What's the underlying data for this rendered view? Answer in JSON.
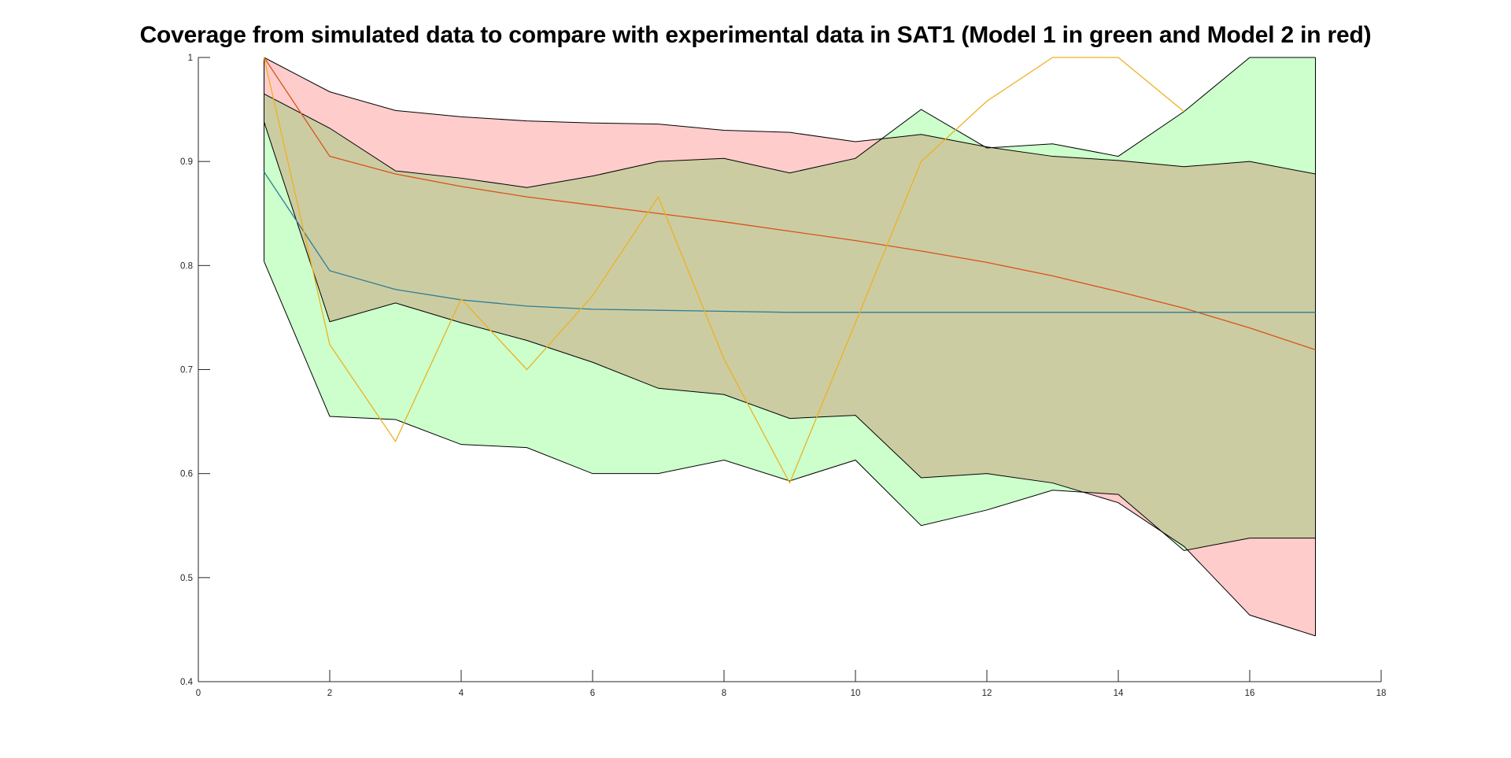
{
  "chart_data": {
    "type": "area",
    "title": "Coverage from simulated data to compare with experimental data in SAT1 (Model 1 in green and Model 2 in red)",
    "xlabel": "",
    "ylabel": "",
    "xlim": [
      0,
      18
    ],
    "ylim": [
      0.4,
      1
    ],
    "x_ticks": [
      "0",
      "2",
      "4",
      "6",
      "8",
      "10",
      "12",
      "14",
      "16",
      "18"
    ],
    "y_ticks": [
      "0.4",
      "0.5",
      "0.6",
      "0.7",
      "0.8",
      "0.9",
      "1"
    ],
    "grid": false,
    "legend": "none",
    "x": [
      1,
      2,
      3,
      4,
      5,
      6,
      7,
      8,
      9,
      10,
      11,
      12,
      13,
      14,
      15,
      16,
      17
    ],
    "bands": [
      {
        "model": "Model 1",
        "color": "#ccffcc",
        "upper": [
          0.965,
          0.932,
          0.891,
          0.884,
          0.875,
          0.886,
          0.9,
          0.903,
          0.889,
          0.903,
          0.95,
          0.913,
          0.917,
          0.905,
          0.948,
          1.0,
          1.0
        ],
        "lower": [
          0.804,
          0.655,
          0.652,
          0.628,
          0.625,
          0.6,
          0.6,
          0.613,
          0.593,
          0.613,
          0.55,
          0.565,
          0.584,
          0.58,
          0.526,
          0.538,
          0.538
        ]
      },
      {
        "model": "Model 2",
        "color": "#ffcccc",
        "upper": [
          1.0,
          0.967,
          0.949,
          0.943,
          0.939,
          0.937,
          0.936,
          0.93,
          0.928,
          0.919,
          0.926,
          0.914,
          0.905,
          0.901,
          0.895,
          0.9,
          0.888
        ],
        "lower": [
          0.938,
          0.746,
          0.764,
          0.745,
          0.728,
          0.707,
          0.682,
          0.676,
          0.653,
          0.656,
          0.596,
          0.6,
          0.591,
          0.572,
          0.53,
          0.464,
          0.444
        ]
      }
    ],
    "series": [
      {
        "color": "#D95319",
        "values": [
          1.0,
          0.905,
          0.888,
          0.876,
          0.866,
          0.858,
          0.85,
          0.842,
          0.833,
          0.824,
          0.814,
          0.803,
          0.79,
          0.775,
          0.759,
          0.74,
          0.719
        ]
      },
      {
        "color": "#2E7D94",
        "values": [
          0.89,
          0.795,
          0.777,
          0.767,
          0.761,
          0.758,
          0.757,
          0.756,
          0.755,
          0.755,
          0.755,
          0.755,
          0.755,
          0.755,
          0.755,
          0.755,
          0.755
        ]
      },
      {
        "color": "#EDB120",
        "values": [
          1.0,
          0.724,
          0.631,
          0.768,
          0.7,
          0.771,
          0.866,
          0.71,
          0.591,
          0.745,
          0.9,
          0.958,
          1.0,
          1.0,
          0.948,
          null,
          null
        ]
      }
    ]
  }
}
